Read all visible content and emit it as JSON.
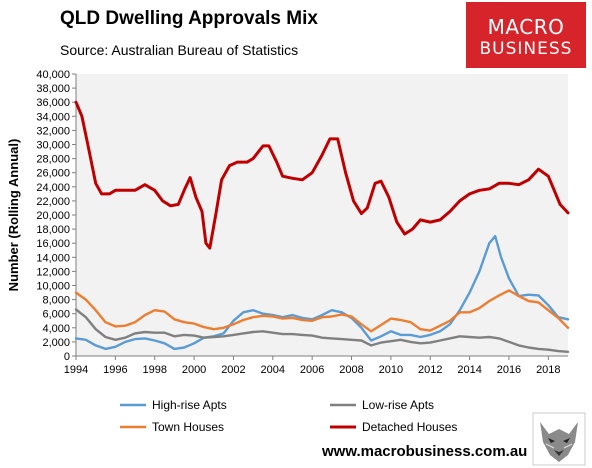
{
  "chart_data": {
    "type": "line",
    "title": "QLD Dwelling Approvals Mix",
    "subtitle": "Source: Australian Bureau of Statistics",
    "ylabel": "Number (Rolling Annual)",
    "xlabel": "",
    "ylim": [
      0,
      40000
    ],
    "xlim": [
      1994,
      2019
    ],
    "yticks": [
      "0",
      "2,000",
      "4,000",
      "6,000",
      "8,000",
      "10,000",
      "12,000",
      "14,000",
      "16,000",
      "18,000",
      "20,000",
      "22,000",
      "24,000",
      "26,000",
      "28,000",
      "30,000",
      "32,000",
      "34,000",
      "36,000",
      "38,000",
      "40,000"
    ],
    "xticks": [
      "1994",
      "1996",
      "1998",
      "2000",
      "2002",
      "2004",
      "2006",
      "2008",
      "2010",
      "2012",
      "2014",
      "2016",
      "2018"
    ],
    "grid": false,
    "legend": "bottom",
    "series": [
      {
        "name": "High-rise Apts",
        "color": "#5b9bd5",
        "points": [
          [
            1994,
            2500
          ],
          [
            1994.5,
            2300
          ],
          [
            1995,
            1500
          ],
          [
            1995.5,
            1000
          ],
          [
            1996,
            1300
          ],
          [
            1996.5,
            2000
          ],
          [
            1997,
            2400
          ],
          [
            1997.5,
            2500
          ],
          [
            1998,
            2200
          ],
          [
            1998.5,
            1800
          ],
          [
            1999,
            1000
          ],
          [
            1999.5,
            1200
          ],
          [
            2000,
            1800
          ],
          [
            2000.5,
            2600
          ],
          [
            2001,
            2800
          ],
          [
            2001.5,
            3200
          ],
          [
            2002,
            5000
          ],
          [
            2002.5,
            6200
          ],
          [
            2003,
            6500
          ],
          [
            2003.5,
            6000
          ],
          [
            2004,
            5800
          ],
          [
            2004.5,
            5500
          ],
          [
            2005,
            5800
          ],
          [
            2005.5,
            5400
          ],
          [
            2006,
            5200
          ],
          [
            2006.5,
            5800
          ],
          [
            2007,
            6500
          ],
          [
            2007.5,
            6200
          ],
          [
            2008,
            5400
          ],
          [
            2008.5,
            4000
          ],
          [
            2009,
            2200
          ],
          [
            2009.5,
            2800
          ],
          [
            2010,
            3500
          ],
          [
            2010.5,
            3000
          ],
          [
            2011,
            3000
          ],
          [
            2011.5,
            2700
          ],
          [
            2012,
            3000
          ],
          [
            2012.5,
            3500
          ],
          [
            2013,
            4500
          ],
          [
            2013.5,
            6500
          ],
          [
            2014,
            9000
          ],
          [
            2014.5,
            12000
          ],
          [
            2015,
            16000
          ],
          [
            2015.3,
            17000
          ],
          [
            2015.6,
            14000
          ],
          [
            2016,
            11000
          ],
          [
            2016.5,
            8500
          ],
          [
            2017,
            8700
          ],
          [
            2017.5,
            8600
          ],
          [
            2018,
            7200
          ],
          [
            2018.5,
            5500
          ],
          [
            2019,
            5200
          ]
        ]
      },
      {
        "name": "Low-rise Apts",
        "color": "#808080",
        "points": [
          [
            1994,
            6600
          ],
          [
            1994.5,
            5500
          ],
          [
            1995,
            3800
          ],
          [
            1995.5,
            2700
          ],
          [
            1996,
            2300
          ],
          [
            1996.5,
            2600
          ],
          [
            1997,
            3200
          ],
          [
            1997.5,
            3400
          ],
          [
            1998,
            3300
          ],
          [
            1998.5,
            3300
          ],
          [
            1999,
            2800
          ],
          [
            1999.5,
            3000
          ],
          [
            2000,
            2900
          ],
          [
            2000.5,
            2600
          ],
          [
            2001,
            2700
          ],
          [
            2001.5,
            2800
          ],
          [
            2002,
            3000
          ],
          [
            2002.5,
            3200
          ],
          [
            2003,
            3400
          ],
          [
            2003.5,
            3500
          ],
          [
            2004,
            3300
          ],
          [
            2004.5,
            3100
          ],
          [
            2005,
            3100
          ],
          [
            2005.5,
            3000
          ],
          [
            2006,
            2900
          ],
          [
            2006.5,
            2600
          ],
          [
            2007,
            2500
          ],
          [
            2007.5,
            2400
          ],
          [
            2008,
            2300
          ],
          [
            2008.5,
            2200
          ],
          [
            2009,
            1500
          ],
          [
            2009.5,
            1900
          ],
          [
            2010,
            2100
          ],
          [
            2010.5,
            2300
          ],
          [
            2011,
            2000
          ],
          [
            2011.5,
            1800
          ],
          [
            2012,
            1900
          ],
          [
            2012.5,
            2200
          ],
          [
            2013,
            2500
          ],
          [
            2013.5,
            2800
          ],
          [
            2014,
            2700
          ],
          [
            2014.5,
            2600
          ],
          [
            2015,
            2700
          ],
          [
            2015.5,
            2500
          ],
          [
            2016,
            2000
          ],
          [
            2016.5,
            1500
          ],
          [
            2017,
            1200
          ],
          [
            2017.5,
            1000
          ],
          [
            2018,
            900
          ],
          [
            2018.5,
            700
          ],
          [
            2019,
            600
          ]
        ]
      },
      {
        "name": "Town Houses",
        "color": "#ed7d31",
        "points": [
          [
            1994,
            9000
          ],
          [
            1994.5,
            8000
          ],
          [
            1995,
            6500
          ],
          [
            1995.5,
            4800
          ],
          [
            1996,
            4200
          ],
          [
            1996.5,
            4300
          ],
          [
            1997,
            4800
          ],
          [
            1997.5,
            5800
          ],
          [
            1998,
            6500
          ],
          [
            1998.5,
            6300
          ],
          [
            1999,
            5200
          ],
          [
            1999.5,
            4800
          ],
          [
            2000,
            4600
          ],
          [
            2000.5,
            4100
          ],
          [
            2001,
            3800
          ],
          [
            2001.5,
            4000
          ],
          [
            2002,
            4500
          ],
          [
            2002.5,
            5100
          ],
          [
            2003,
            5500
          ],
          [
            2003.5,
            5700
          ],
          [
            2004,
            5600
          ],
          [
            2004.5,
            5300
          ],
          [
            2005,
            5400
          ],
          [
            2005.5,
            5100
          ],
          [
            2006,
            5000
          ],
          [
            2006.5,
            5500
          ],
          [
            2007,
            5600
          ],
          [
            2007.5,
            5900
          ],
          [
            2008,
            5600
          ],
          [
            2008.5,
            4500
          ],
          [
            2009,
            3500
          ],
          [
            2009.5,
            4400
          ],
          [
            2010,
            5300
          ],
          [
            2010.5,
            5100
          ],
          [
            2011,
            4800
          ],
          [
            2011.5,
            3800
          ],
          [
            2012,
            3600
          ],
          [
            2012.5,
            4300
          ],
          [
            2013,
            5000
          ],
          [
            2013.5,
            6200
          ],
          [
            2014,
            6200
          ],
          [
            2014.5,
            6800
          ],
          [
            2015,
            7800
          ],
          [
            2015.5,
            8600
          ],
          [
            2016,
            9300
          ],
          [
            2016.5,
            8500
          ],
          [
            2017,
            7800
          ],
          [
            2017.5,
            7600
          ],
          [
            2018,
            6500
          ],
          [
            2018.5,
            5400
          ],
          [
            2019,
            4000
          ]
        ]
      },
      {
        "name": "Detached Houses",
        "color": "#c00000",
        "points": [
          [
            1994,
            36000
          ],
          [
            1994.3,
            34000
          ],
          [
            1994.6,
            30000
          ],
          [
            1995,
            24500
          ],
          [
            1995.3,
            23000
          ],
          [
            1995.7,
            23000
          ],
          [
            1996,
            23500
          ],
          [
            1996.5,
            23500
          ],
          [
            1997,
            23500
          ],
          [
            1997.5,
            24300
          ],
          [
            1998,
            23500
          ],
          [
            1998.4,
            22000
          ],
          [
            1998.8,
            21300
          ],
          [
            1999.2,
            21500
          ],
          [
            1999.5,
            23500
          ],
          [
            1999.8,
            25300
          ],
          [
            2000.1,
            22500
          ],
          [
            2000.4,
            20500
          ],
          [
            2000.6,
            16000
          ],
          [
            2000.8,
            15300
          ],
          [
            2001.1,
            20000
          ],
          [
            2001.4,
            25000
          ],
          [
            2001.8,
            27000
          ],
          [
            2002.2,
            27500
          ],
          [
            2002.7,
            27500
          ],
          [
            2003,
            28000
          ],
          [
            2003.5,
            29800
          ],
          [
            2003.8,
            29800
          ],
          [
            2004.2,
            27500
          ],
          [
            2004.5,
            25500
          ],
          [
            2005,
            25200
          ],
          [
            2005.5,
            25000
          ],
          [
            2006,
            26000
          ],
          [
            2006.5,
            28500
          ],
          [
            2006.9,
            30800
          ],
          [
            2007.3,
            30800
          ],
          [
            2007.7,
            26000
          ],
          [
            2008.1,
            22000
          ],
          [
            2008.5,
            20200
          ],
          [
            2008.8,
            21000
          ],
          [
            2009.2,
            24500
          ],
          [
            2009.5,
            24800
          ],
          [
            2009.9,
            22500
          ],
          [
            2010.3,
            19000
          ],
          [
            2010.7,
            17300
          ],
          [
            2011.1,
            18000
          ],
          [
            2011.5,
            19300
          ],
          [
            2012,
            19000
          ],
          [
            2012.5,
            19300
          ],
          [
            2013,
            20500
          ],
          [
            2013.5,
            22000
          ],
          [
            2014,
            23000
          ],
          [
            2014.5,
            23500
          ],
          [
            2015,
            23700
          ],
          [
            2015.5,
            24500
          ],
          [
            2016,
            24500
          ],
          [
            2016.5,
            24300
          ],
          [
            2017,
            25000
          ],
          [
            2017.5,
            26500
          ],
          [
            2018,
            25500
          ],
          [
            2018.3,
            23500
          ],
          [
            2018.6,
            21500
          ],
          [
            2019,
            20300
          ]
        ]
      }
    ]
  },
  "branding": {
    "logo_line1": "MACRO",
    "logo_line2": "BUSINESS",
    "footer_url": "www.macrobusiness.com.au"
  }
}
